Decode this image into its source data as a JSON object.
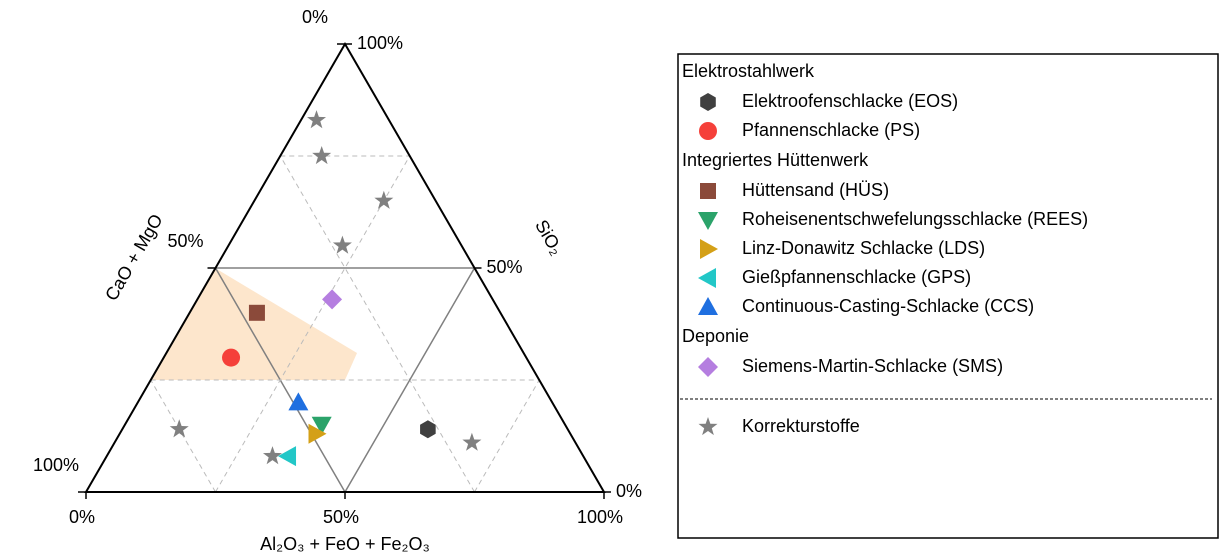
{
  "chart_data": {
    "type": "ternary",
    "axes": [
      {
        "label": "CaO + MgO",
        "ticks": [
          {
            "value": 0,
            "label": "0%"
          },
          {
            "value": 50,
            "label": "50%"
          },
          {
            "value": 100,
            "label": "100%"
          }
        ],
        "minor_ticks": [
          25,
          75
        ]
      },
      {
        "label": "Al₂O₃ + FeO + Fe₂O₃",
        "ticks": [
          {
            "value": 0,
            "label": "0%"
          },
          {
            "value": 50,
            "label": "50%"
          },
          {
            "value": 100,
            "label": "100%"
          }
        ],
        "minor_ticks": [
          25,
          75
        ]
      },
      {
        "label": "SiO₂",
        "ticks": [
          {
            "value": 0,
            "label": "0%"
          },
          {
            "value": 50,
            "label": "50%"
          },
          {
            "value": 100,
            "label": "100%"
          }
        ],
        "minor_ticks": [
          25,
          75
        ]
      }
    ],
    "groups": [
      "Elektrostahlwerk",
      "Integriertes Hüttenwerk",
      "Deponie"
    ],
    "series": [
      {
        "name": "Elektroofenschlacke (EOS)",
        "group": 0,
        "marker": "hexagon",
        "color": "#404040",
        "points": [
          [
            27,
            59,
            14
          ]
        ]
      },
      {
        "name": "Pfannenschlacke (PS)",
        "group": 0,
        "marker": "circle",
        "color": "#f5403a",
        "points": [
          [
            57,
            13,
            30
          ]
        ]
      },
      {
        "name": "Hüttensand (HÜS)",
        "group": 1,
        "marker": "square",
        "color": "#8b4a3a",
        "points": [
          [
            47,
            13,
            40
          ]
        ]
      },
      {
        "name": "Roheisenentschwefelungsschlacke (REES)",
        "group": 1,
        "marker": "triangle-down",
        "color": "#2ba36a",
        "points": [
          [
            47,
            38,
            15
          ]
        ]
      },
      {
        "name": "Linz-Donawitz Schlacke (LDS)",
        "group": 1,
        "marker": "triangle-right",
        "color": "#d4a017",
        "points": [
          [
            49,
            38,
            13
          ]
        ]
      },
      {
        "name": "Gießpfannenschlacke (GPS)",
        "group": 1,
        "marker": "triangle-left",
        "color": "#22c7c7",
        "points": [
          [
            57,
            35,
            8
          ]
        ]
      },
      {
        "name": "Continuous-Casting-Schlacke (CCS)",
        "group": 1,
        "marker": "triangle-up",
        "color": "#1f6fe0",
        "points": [
          [
            49,
            31,
            20
          ]
        ]
      },
      {
        "name": "Siemens-Martin-Schlacke (SMS)",
        "group": 2,
        "marker": "diamond",
        "color": "#b57ee0",
        "points": [
          [
            31,
            26,
            43
          ]
        ]
      },
      {
        "name": "Korrekturstoffe",
        "marker": "star",
        "color": "#808080",
        "points": [
          [
            14,
            3,
            83
          ],
          [
            17,
            8,
            75
          ],
          [
            10,
            25,
            65
          ],
          [
            23,
            22,
            55
          ],
          [
            75,
            11,
            14
          ],
          [
            60,
            32,
            8
          ],
          [
            20,
            69,
            11
          ]
        ]
      }
    ]
  }
}
